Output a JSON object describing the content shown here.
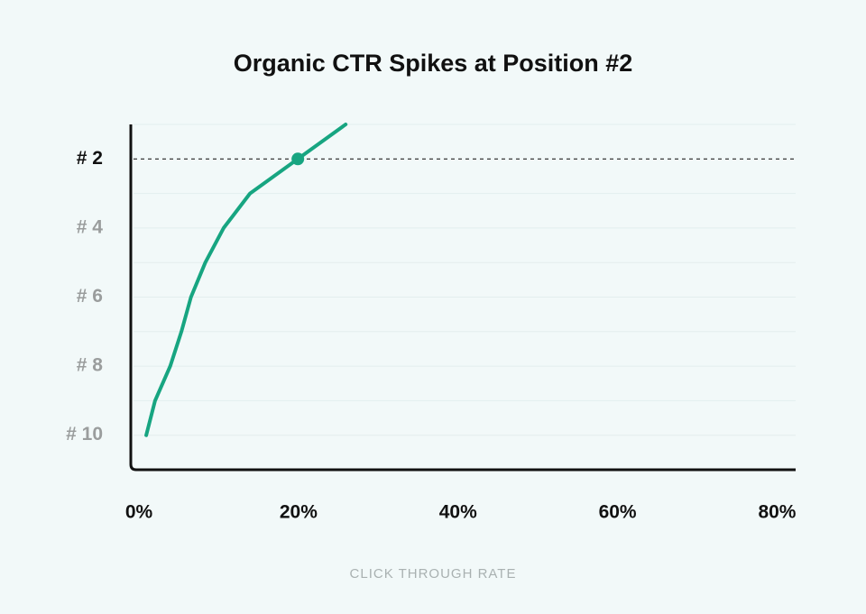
{
  "chart_data": {
    "type": "line",
    "title": "Organic CTR Spikes at Position #2",
    "x_label": "CLICK THROUGH RATE",
    "x": [
      1.6,
      2.7,
      4.6,
      6.0,
      7.2,
      9.0,
      11.3,
      14.6,
      20.6,
      26.6
    ],
    "values": [
      10,
      9,
      8,
      7,
      6,
      5,
      4,
      3,
      2,
      1
    ],
    "color": "#17a581",
    "xlim": [
      0,
      83
    ],
    "xticks": [
      {
        "value": 0,
        "label": "0%"
      },
      {
        "value": 20,
        "label": "20%"
      },
      {
        "value": 40,
        "label": "40%"
      },
      {
        "value": 60,
        "label": "60%"
      },
      {
        "value": 80,
        "label": "80%"
      }
    ],
    "ylim": [
      11,
      1
    ],
    "yticks": [
      {
        "value": 2,
        "label": "# 2"
      },
      {
        "value": 4,
        "label": "# 4"
      },
      {
        "value": 6,
        "label": "# 6"
      },
      {
        "value": 8,
        "label": "# 8"
      },
      {
        "value": 10,
        "label": "# 10"
      }
    ],
    "minor_yticks": [
      1,
      3,
      5,
      7,
      9
    ],
    "grid": true,
    "highlight_index": 8
  }
}
